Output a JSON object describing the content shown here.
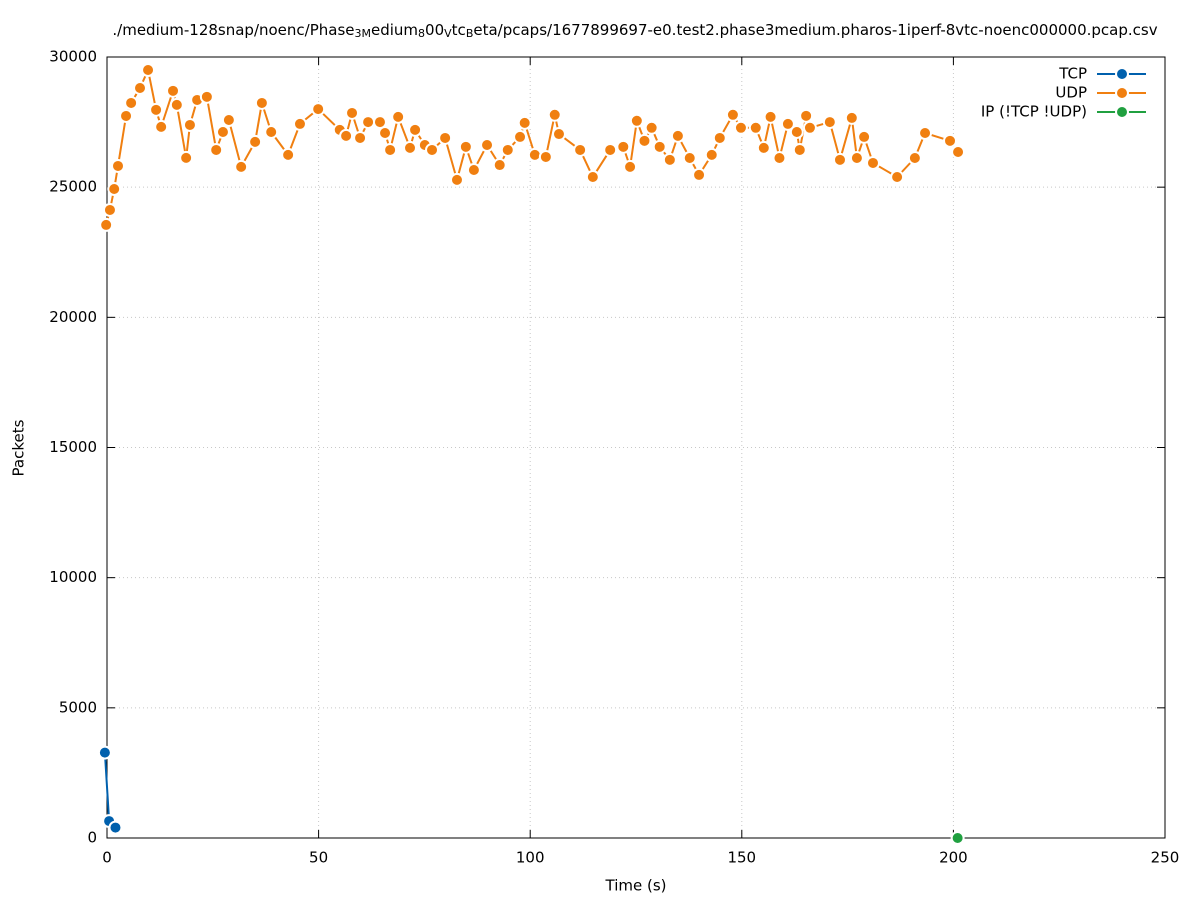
{
  "chart_data": {
    "type": "line",
    "title": [
      "./medium-128snap/noenc/Phase",
      "3M",
      "edium",
      "8",
      "00",
      "V",
      "tc",
      "B",
      "eta/pcaps/1677899697-e0.test2.phase3medium.pharos-1iperf-8vtc-noenc000000.pcap.csv"
    ],
    "xlabel": "Time (s)",
    "ylabel": "Packets",
    "xlim": [
      0,
      250
    ],
    "xticks": [
      0,
      50,
      100,
      150,
      200,
      250
    ],
    "ylim": [
      0,
      30000
    ],
    "yticks": [
      0,
      5000,
      10000,
      15000,
      20000,
      25000,
      30000
    ],
    "grid": true,
    "legend": "top-right",
    "series": [
      {
        "name": "TCP",
        "color": "#0060ad",
        "x": [
          -0.5,
          0.5,
          2
        ],
        "values": [
          3280,
          650,
          400
        ]
      },
      {
        "name": "UDP",
        "color": "#f07f10",
        "x": [
          -0.2,
          0.7,
          1.7,
          2.6,
          4.5,
          5.7,
          7.8,
          9.7,
          11.6,
          12.8,
          15.6,
          16.5,
          18.7,
          19.6,
          21.3,
          23.6,
          25.8,
          27.4,
          28.8,
          31.7,
          35,
          36.6,
          38.8,
          42.8,
          45.6,
          49.9,
          55,
          56.5,
          57.9,
          59.8,
          61.7,
          64.5,
          65.7,
          66.9,
          68.8,
          71.6,
          72.8,
          75.1,
          76.8,
          79.9,
          82.7,
          84.8,
          86.7,
          89.8,
          92.8,
          94.7,
          97.6,
          98.7,
          101.1,
          103.7,
          105.8,
          106.8,
          111.8,
          114.8,
          118.9,
          122,
          123.6,
          125.2,
          127,
          128.7,
          130.6,
          133,
          134.9,
          137.7,
          139.9,
          142.9,
          144.8,
          147.9,
          149.8,
          153.3,
          155.2,
          156.8,
          158.9,
          160.9,
          163,
          163.7,
          165.2,
          166.1,
          170.8,
          173.2,
          176,
          177.2,
          178.9,
          181,
          186.7,
          190.9,
          193.3,
          199.2,
          201.1
        ],
        "values": [
          23550,
          24125,
          24930,
          25815,
          27735,
          28235,
          28810,
          29500,
          27970,
          27315,
          28700,
          28160,
          26125,
          27390,
          28350,
          28470,
          26430,
          27120,
          27580,
          25780,
          26740,
          28235,
          27120,
          26240,
          27430,
          28000,
          27200,
          26970,
          27850,
          26890,
          27500,
          27500,
          27080,
          26430,
          27700,
          26510,
          27200,
          26620,
          26430,
          26890,
          25280,
          26550,
          25660,
          26620,
          25850,
          26430,
          26930,
          27470,
          26240,
          26160,
          27780,
          27040,
          26430,
          25390,
          26430,
          26550,
          25780,
          27550,
          26780,
          27280,
          26550,
          26050,
          26970,
          26120,
          25470,
          26240,
          26890,
          27780,
          27280,
          27280,
          26510,
          27700,
          26120,
          27430,
          27120,
          26430,
          27740,
          27280,
          27500,
          26050,
          27660,
          26120,
          26930,
          25930,
          25390,
          26120,
          27080,
          26780,
          26350
        ]
      },
      {
        "name": "IP (!TCP  !UDP)",
        "color": "#20a040",
        "x": [
          201
        ],
        "values": [
          0
        ]
      }
    ]
  }
}
